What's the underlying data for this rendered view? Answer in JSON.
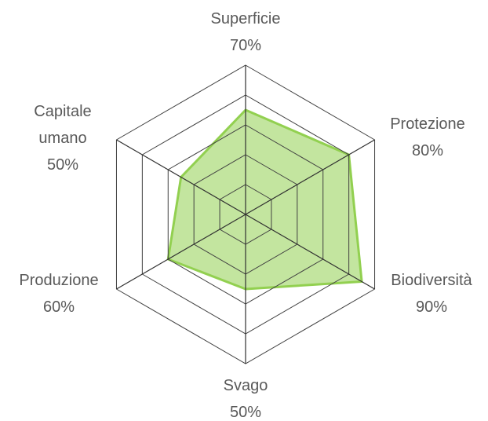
{
  "chart_data": {
    "type": "radar",
    "categories": [
      "Superficie",
      "Protezione",
      "Biodiversità",
      "Svago",
      "Produzione",
      "Capitale umano"
    ],
    "values": [
      70,
      80,
      90,
      50,
      60,
      50
    ],
    "value_labels": [
      "70%",
      "80%",
      "90%",
      "50%",
      "60%",
      "50%"
    ],
    "color": "#92d050",
    "rlim": [
      0,
      100
    ],
    "rticks": [
      20,
      40,
      60,
      80,
      100
    ],
    "grid": true
  }
}
